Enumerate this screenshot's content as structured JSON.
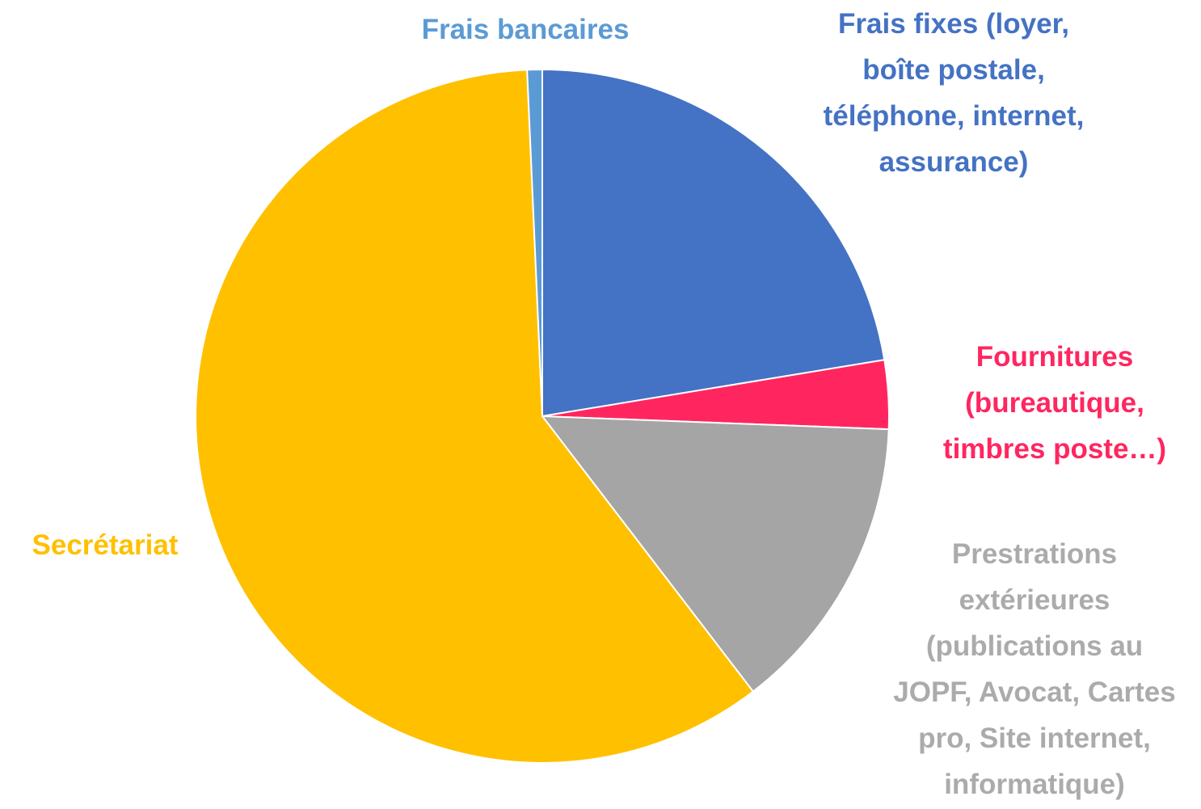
{
  "chart_data": {
    "type": "pie",
    "title": "",
    "start_angle_deg": 0,
    "direction": "clockwise",
    "slices": [
      {
        "label": "Frais fixes (loyer, boîte postale, téléphone, internet, assurance)",
        "lines": [
          "Frais fixes (loyer,",
          "boîte postale,",
          "téléphone, internet,",
          "assurance)"
        ],
        "value": 22.4,
        "color": "#4472C4",
        "label_color": "#4472C4"
      },
      {
        "label": "Fournitures (bureautique, timbres poste…)",
        "lines": [
          "Fournitures",
          "(bureautique,",
          "timbres poste…)"
        ],
        "value": 3.2,
        "color": "#FF2660",
        "label_color": "#FF2660"
      },
      {
        "label": "Prestrations extérieures (publications au JOPF, Avocat, Cartes pro, Site internet, informatique)",
        "lines": [
          "Prestrations",
          "extérieures",
          "(publications au",
          "JOPF, Avocat, Cartes",
          "pro, Site internet,",
          "informatique)"
        ],
        "value": 14.0,
        "color": "#A5A5A5",
        "label_color": "#ABABAB"
      },
      {
        "label": "Secrétariat",
        "lines": [
          "Secrétariat"
        ],
        "value": 59.7,
        "color": "#FFC000",
        "label_color": "#FFC000"
      },
      {
        "label": "Frais bancaires",
        "lines": [
          "Frais bancaires"
        ],
        "value": 0.7,
        "color": "#5B9BD5",
        "label_color": "#5B9BD5"
      }
    ]
  }
}
